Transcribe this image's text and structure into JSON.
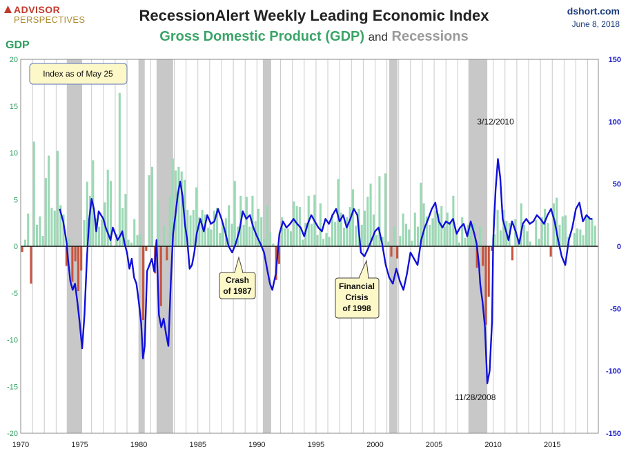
{
  "header": {
    "logo_top": "ADVISOR",
    "logo_bottom": "PERSPECTIVES",
    "title": "RecessionAlert Weekly Leading Economic Index",
    "subtitle_gdp": "Gross Domestic Product (GDP)",
    "subtitle_and": "and",
    "subtitle_recessions": "Recessions",
    "site": "dshort.com",
    "date": "June 8, 2018"
  },
  "colors": {
    "gdp_positive": "#9ad9b4",
    "gdp_negative": "#c9543e",
    "recession_band": "#c8c8c8",
    "index_line": "#1010d8",
    "right_axis": "#1a1ad0",
    "left_axis": "#2ea060"
  },
  "chart_data": {
    "type": "bar+line",
    "title": "RecessionAlert Weekly Leading Economic Index",
    "subtitle": "Gross Domestic Product (GDP) and Recessions",
    "ylabel_left": "GDP",
    "ylim_left": [
      -20,
      20
    ],
    "ylim_right": [
      -150,
      150
    ],
    "xlim": [
      1970,
      2018.9
    ],
    "x_ticks": [
      "1970",
      "1975",
      "1980",
      "1985",
      "1990",
      "1995",
      "2000",
      "2005",
      "2010",
      "2015"
    ],
    "y_ticks_left": [
      "20",
      "15",
      "10",
      "5",
      "0",
      "-5",
      "-10",
      "-15",
      "-20"
    ],
    "y_ticks_right": [
      "150",
      "100",
      "50",
      "0",
      "-50",
      "-100",
      "-150"
    ],
    "index_note": "Index as of May 25",
    "recessions": [
      [
        1973.9,
        1975.2
      ],
      [
        1980.0,
        1980.5
      ],
      [
        1981.5,
        1982.9
      ],
      [
        1990.5,
        1991.2
      ],
      [
        2001.2,
        2001.9
      ],
      [
        2007.9,
        2009.5
      ]
    ],
    "gdp_series": {
      "name": "GDP (quarterly, annualized %)",
      "start": 1970.0,
      "step": 0.25,
      "values": [
        -0.6,
        0.7,
        3.5,
        -4.0,
        11.2,
        2.3,
        3.2,
        1.1,
        7.3,
        9.7,
        4.1,
        3.8,
        10.2,
        4.4,
        3.4,
        -2.1,
        0.9,
        -3.8,
        -1.6,
        -4.8,
        -2.6,
        2.8,
        6.9,
        5.4,
        9.2,
        3.0,
        2.1,
        2.9,
        4.7,
        8.2,
        7.0,
        0.0,
        1.3,
        16.4,
        4.1,
        5.6,
        0.7,
        0.4,
        2.9,
        1.2,
        1.3,
        -7.9,
        -0.5,
        7.6,
        8.5,
        -2.9,
        4.9,
        -6.4,
        2.2,
        -1.5,
        5.3,
        9.4,
        8.1,
        8.5,
        8.0,
        7.1,
        3.9,
        3.3,
        3.9,
        6.3,
        3.1,
        3.9,
        3.4,
        2.0,
        1.8,
        3.8,
        4.1,
        1.4,
        2.5,
        3.0,
        4.4,
        2.4,
        7.0,
        2.1,
        5.4,
        2.3,
        5.3,
        2.1,
        5.4,
        2.7,
        4.0,
        3.1,
        0.8,
        4.4,
        1.5,
        0.3,
        -3.6,
        -1.9,
        3.1,
        1.9,
        1.9,
        1.6,
        4.8,
        4.3,
        4.2,
        0.7,
        2.5,
        5.4,
        2.4,
        5.5,
        1.2,
        4.6,
        0.8,
        1.4,
        1.0,
        3.5,
        2.6,
        7.2,
        3.6,
        2.0,
        3.1,
        4.2,
        6.1,
        2.2,
        4.0,
        2.3,
        3.8,
        5.3,
        6.7,
        3.4,
        1.2,
        7.5,
        1.0,
        7.8,
        0.5,
        -1.1,
        2.1,
        -1.3,
        1.1,
        3.5,
        2.4,
        1.8,
        0.6,
        3.6,
        2.1,
        6.8,
        4.6,
        3.2,
        2.3,
        3.0,
        3.8,
        3.5,
        4.3,
        2.1,
        3.6,
        2.6,
        5.4,
        1.3,
        0.4,
        3.1,
        0.9,
        2.3,
        2.2,
        2.5,
        -2.3,
        2.1,
        -2.1,
        -8.4,
        -5.4,
        -0.5,
        1.3,
        3.9,
        1.7,
        3.9,
        2.7,
        2.5,
        -1.5,
        2.9,
        0.8,
        4.6,
        2.3,
        1.6,
        0.5,
        0.1,
        2.8,
        0.8,
        3.1,
        4.0,
        2.5,
        -1.1,
        4.6,
        5.2,
        2.3,
        3.2,
        3.3,
        1.0,
        0.1,
        1.4,
        1.9,
        1.8,
        1.2,
        3.1,
        3.2,
        2.9,
        2.2
      ]
    },
    "index_series": {
      "name": "RecessionAlert Weekly Leading Economic Index",
      "x": [
        1973.3,
        1973.6,
        1973.9,
        1974.0,
        1974.2,
        1974.4,
        1974.6,
        1974.8,
        1975.0,
        1975.2,
        1975.4,
        1975.6,
        1975.8,
        1976.0,
        1976.2,
        1976.4,
        1976.6,
        1976.8,
        1977.0,
        1977.2,
        1977.4,
        1977.6,
        1977.8,
        1978.0,
        1978.2,
        1978.4,
        1978.6,
        1978.8,
        1979.0,
        1979.2,
        1979.4,
        1979.6,
        1979.8,
        1980.0,
        1980.2,
        1980.35,
        1980.5,
        1980.7,
        1980.9,
        1981.1,
        1981.3,
        1981.5,
        1981.7,
        1981.9,
        1982.1,
        1982.3,
        1982.5,
        1982.7,
        1982.9,
        1983.1,
        1983.3,
        1983.5,
        1983.7,
        1983.9,
        1984.1,
        1984.3,
        1984.5,
        1984.7,
        1984.9,
        1985.2,
        1985.5,
        1985.8,
        1986.1,
        1986.4,
        1986.7,
        1987.0,
        1987.3,
        1987.6,
        1987.9,
        1988.2,
        1988.5,
        1988.8,
        1989.1,
        1989.4,
        1989.7,
        1990.0,
        1990.3,
        1990.6,
        1990.9,
        1991.1,
        1991.3,
        1991.6,
        1991.9,
        1992.2,
        1992.5,
        1992.8,
        1993.1,
        1993.4,
        1993.7,
        1994.0,
        1994.3,
        1994.6,
        1994.9,
        1995.2,
        1995.5,
        1995.8,
        1996.1,
        1996.4,
        1996.7,
        1997.0,
        1997.3,
        1997.6,
        1997.9,
        1998.2,
        1998.5,
        1998.8,
        1999.1,
        1999.4,
        1999.7,
        2000.0,
        2000.3,
        2000.6,
        2000.9,
        2001.2,
        2001.5,
        2001.8,
        2002.1,
        2002.4,
        2002.7,
        2003.0,
        2003.3,
        2003.6,
        2003.9,
        2004.2,
        2004.5,
        2004.8,
        2005.1,
        2005.4,
        2005.7,
        2006.0,
        2006.3,
        2006.6,
        2006.9,
        2007.2,
        2007.5,
        2007.8,
        2008.1,
        2008.4,
        2008.6,
        2008.8,
        2008.9,
        2009.1,
        2009.3,
        2009.5,
        2009.7,
        2009.9,
        2010.0,
        2010.2,
        2010.4,
        2010.6,
        2010.8,
        2011.0,
        2011.3,
        2011.6,
        2011.9,
        2012.2,
        2012.5,
        2012.8,
        2013.1,
        2013.4,
        2013.7,
        2014.0,
        2014.3,
        2014.6,
        2014.9,
        2015.2,
        2015.5,
        2015.8,
        2016.1,
        2016.4,
        2016.7,
        2017.0,
        2017.3,
        2017.6,
        2017.9,
        2018.2,
        2018.4
      ],
      "values": [
        30,
        20,
        2,
        -10,
        -28,
        -35,
        -30,
        -45,
        -62,
        -82,
        -55,
        -10,
        22,
        38,
        30,
        12,
        28,
        25,
        22,
        15,
        10,
        5,
        15,
        10,
        5,
        8,
        12,
        2,
        -5,
        -18,
        -10,
        -25,
        -30,
        -45,
        -62,
        -90,
        -80,
        -20,
        -15,
        -10,
        -20,
        5,
        -55,
        -65,
        -58,
        -70,
        -80,
        -30,
        10,
        25,
        42,
        52,
        40,
        18,
        5,
        -18,
        -15,
        -5,
        10,
        22,
        12,
        25,
        18,
        20,
        30,
        22,
        12,
        0,
        -5,
        2,
        12,
        28,
        22,
        25,
        15,
        8,
        2,
        -5,
        -20,
        -30,
        -35,
        -22,
        10,
        20,
        15,
        18,
        22,
        18,
        15,
        8,
        18,
        25,
        20,
        15,
        12,
        22,
        18,
        25,
        30,
        20,
        25,
        15,
        22,
        30,
        25,
        -5,
        -8,
        -2,
        5,
        12,
        15,
        2,
        -15,
        -25,
        -30,
        -18,
        -28,
        -35,
        -22,
        -5,
        -10,
        -15,
        5,
        15,
        22,
        30,
        35,
        20,
        15,
        20,
        18,
        22,
        10,
        15,
        18,
        8,
        20,
        10,
        2,
        -15,
        -30,
        -45,
        -65,
        -110,
        -100,
        -60,
        5,
        45,
        70,
        55,
        22,
        15,
        5,
        20,
        12,
        2,
        18,
        22,
        18,
        20,
        25,
        22,
        18,
        25,
        30,
        20,
        5,
        -8,
        -15,
        5,
        15,
        30,
        35,
        20,
        25,
        22,
        22
      ]
    },
    "annotations": [
      {
        "text": "3/12/2010",
        "x": 2010.2,
        "y": 70
      },
      {
        "text": "11/28/2008",
        "x": 2008.9,
        "y": -118
      },
      {
        "text": "Crash of 1987",
        "x": 1987.8,
        "y": -3
      },
      {
        "text": "Financial Crisis of 1998",
        "x": 1998.8,
        "y": -10
      }
    ],
    "callouts": {
      "crash_1987": [
        "Crash",
        "of 1987"
      ],
      "crisis_1998": [
        "Financial",
        "Crisis",
        "of 1998"
      ]
    }
  }
}
